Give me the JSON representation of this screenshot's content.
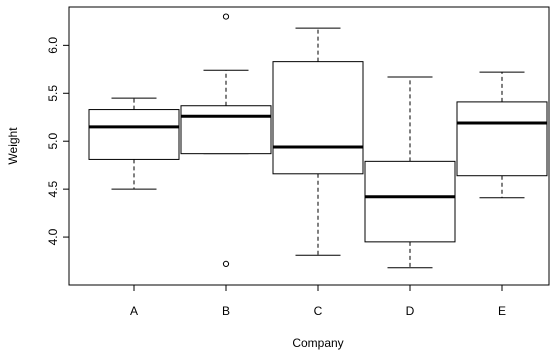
{
  "chart_data": {
    "type": "boxplot",
    "title": "",
    "xlabel": "Company",
    "ylabel": "Weight",
    "ylim": [
      3.5,
      6.4
    ],
    "yticks": [
      4.0,
      4.5,
      5.0,
      5.5,
      6.0
    ],
    "ytick_labels": [
      "4.0",
      "4.5",
      "5.0",
      "5.5",
      "6.0"
    ],
    "grid": false,
    "categories": [
      "A",
      "B",
      "C",
      "D",
      "E"
    ],
    "boxes": [
      {
        "category": "A",
        "whisker_low": 4.5,
        "q1": 4.81,
        "median": 5.15,
        "q3": 5.33,
        "whisker_high": 5.45,
        "outliers": []
      },
      {
        "category": "B",
        "whisker_low": 4.87,
        "q1": 4.87,
        "median": 5.26,
        "q3": 5.37,
        "whisker_high": 5.74,
        "outliers": [
          6.3,
          3.72
        ]
      },
      {
        "category": "C",
        "whisker_low": 3.81,
        "q1": 4.66,
        "median": 4.94,
        "q3": 5.83,
        "whisker_high": 6.18,
        "outliers": []
      },
      {
        "category": "D",
        "whisker_low": 3.68,
        "q1": 3.95,
        "median": 4.42,
        "q3": 4.79,
        "whisker_high": 5.67,
        "outliers": []
      },
      {
        "category": "E",
        "whisker_low": 4.41,
        "q1": 4.64,
        "median": 5.19,
        "q3": 5.41,
        "whisker_high": 5.72,
        "outliers": []
      }
    ]
  }
}
